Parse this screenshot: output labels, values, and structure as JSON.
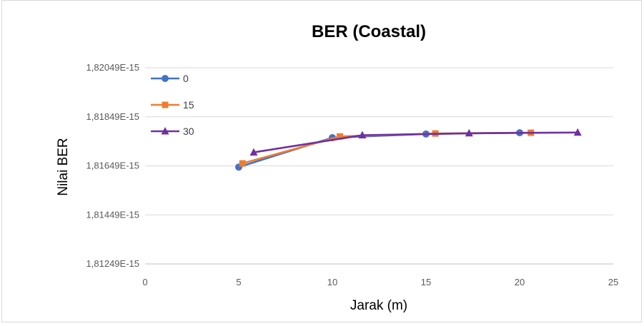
{
  "chart_data": {
    "type": "line",
    "title": "BER (Coastal)",
    "xlabel": "Jarak (m)",
    "ylabel": "Nilai BER",
    "xlim": [
      0,
      25
    ],
    "x_ticks": [
      "0",
      "5",
      "10",
      "15",
      "20",
      "25"
    ],
    "ylim": [
      1.81249e-15,
      1.82049e-15
    ],
    "y_ticks": [
      "1,81249E-15",
      "1,81449E-15",
      "1,81649E-15",
      "1,81849E-15",
      "1,82049E-15"
    ],
    "grid": "horizontal",
    "legend_position": "top-left",
    "series": [
      {
        "name": "0",
        "color": "#4472c4",
        "marker": "circle",
        "x": [
          5,
          10,
          15,
          20
        ],
        "y": [
          1.81644e-15,
          1.81764e-15,
          1.81779e-15,
          1.81784e-15
        ]
      },
      {
        "name": "15",
        "color": "#ed7d31",
        "marker": "square",
        "x": [
          5.2,
          10.4,
          15.5,
          20.6
        ],
        "y": [
          1.81659e-15,
          1.81769e-15,
          1.81781e-15,
          1.81784e-15
        ]
      },
      {
        "name": "30",
        "color": "#7030a0",
        "marker": "triangle",
        "x": [
          5.8,
          11.6,
          17.3,
          23.1
        ],
        "y": [
          1.81704e-15,
          1.81774e-15,
          1.81782e-15,
          1.81785e-15
        ]
      }
    ]
  }
}
